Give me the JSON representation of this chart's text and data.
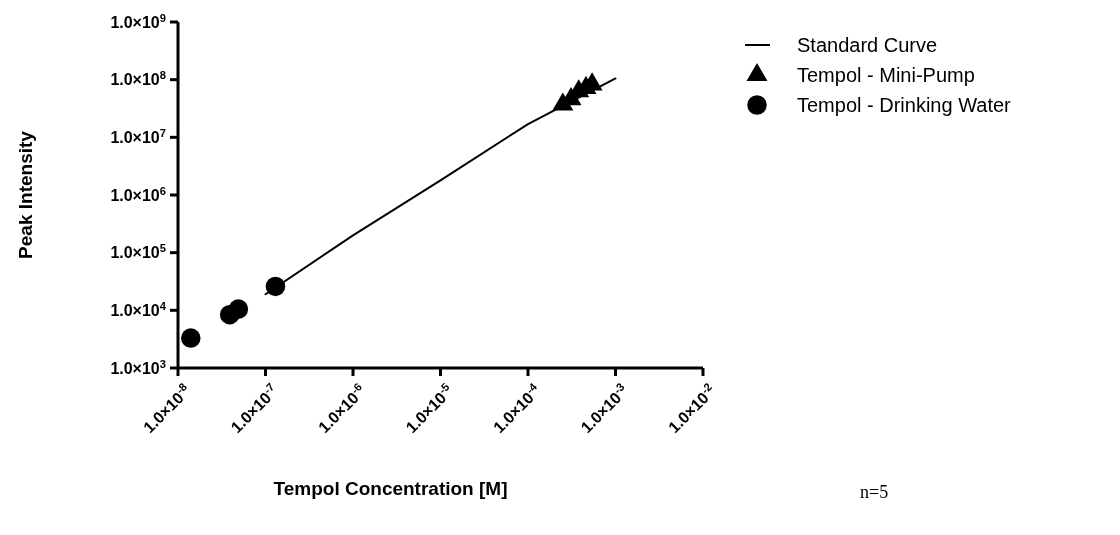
{
  "chart_data": {
    "type": "scatter",
    "xlabel": "Tempol Concentration [M]",
    "ylabel": "Peak Intensity",
    "log": "xy",
    "legend": "top right",
    "grid": false,
    "xlim": [
      1e-08,
      0.01
    ],
    "ylim": [
      1000.0,
      1000000000.0
    ],
    "xticks": [
      {
        "value": 1e-08,
        "label": "1.0×10$^{-8}$"
      },
      {
        "value": 1e-07,
        "label": "1.0×10$^{-7}$"
      },
      {
        "value": 1e-06,
        "label": "1.0×10$^{-6}$"
      },
      {
        "value": 1e-05,
        "label": "1.0×10$^{-5}$"
      },
      {
        "value": 0.0001,
        "label": "1.0×10$^{-4}$"
      },
      {
        "value": 0.001,
        "label": "1.0×10$^{-3}$"
      },
      {
        "value": 0.01,
        "label": "1.0×10$^{-2}$"
      }
    ],
    "yticks": [
      {
        "value": 1000.0,
        "label": "1.0×10$^{3}$"
      },
      {
        "value": 10000.0,
        "label": "1.0×10$^{4}$"
      },
      {
        "value": 100000.0,
        "label": "1.0×10$^{5}$"
      },
      {
        "value": 1000000.0,
        "label": "1.0×10$^{6}$"
      },
      {
        "value": 10000000.0,
        "label": "1.0×10$^{7}$"
      },
      {
        "value": 100000000.0,
        "label": "1.0×10$^{8}$"
      },
      {
        "value": 1000000000.0,
        "label": "1.0×10$^{9}$"
      }
    ],
    "series": [
      {
        "name": "Standard Curve",
        "type": "line",
        "marker": "none",
        "line_style": "solid",
        "color": "#000000",
        "x": [
          1e-07,
          1e-06,
          1e-05,
          0.0001,
          0.001
        ],
        "values": [
          19000,
          200000,
          1800000,
          17000000,
          105000000
        ]
      },
      {
        "name": "Tempol - Mini-Pump",
        "marker": "triangle",
        "color": "#000000",
        "x": [
          0.00025,
          0.00031,
          0.00038,
          0.00046,
          0.00054
        ],
        "values": [
          37000000,
          46000000,
          63000000,
          72000000,
          83000000
        ]
      },
      {
        "name": "Tempol - Drinking Water",
        "marker": "circle",
        "color": "#000000",
        "x": [
          1.4e-08,
          3.9e-08,
          4.9e-08,
          1.3e-07
        ],
        "values": [
          3300,
          8400,
          10500,
          26000
        ]
      }
    ],
    "annotations": [
      "n=5"
    ]
  }
}
